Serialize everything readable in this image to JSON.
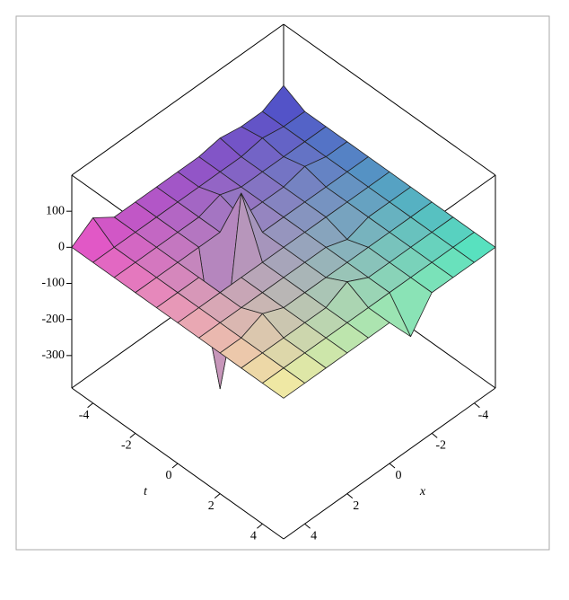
{
  "chart_data": {
    "type": "surface",
    "xlabel": "x",
    "tlabel": "t",
    "t": [
      -5,
      -4,
      -3,
      -2,
      -1,
      0,
      1,
      2,
      3,
      4,
      5
    ],
    "x": [
      -5,
      -4,
      -3,
      -2,
      -1,
      0,
      1,
      2,
      3,
      4,
      5
    ],
    "z": [
      [
        30,
        0,
        0,
        10,
        0,
        0,
        0,
        0,
        0,
        40,
        0
      ],
      [
        0,
        0,
        10,
        0,
        0,
        0,
        0,
        0,
        0,
        0,
        0
      ],
      [
        0,
        0,
        0,
        0,
        0,
        20,
        0,
        0,
        0,
        0,
        0
      ],
      [
        0,
        0,
        15,
        0,
        0,
        0,
        0,
        0,
        0,
        0,
        0
      ],
      [
        0,
        0,
        0,
        0,
        0,
        0,
        150,
        -350,
        0,
        0,
        0
      ],
      [
        0,
        0,
        0,
        0,
        0,
        0,
        0,
        0,
        0,
        0,
        0
      ],
      [
        0,
        0,
        0,
        -20,
        0,
        0,
        0,
        0,
        0,
        0,
        0
      ],
      [
        0,
        0,
        0,
        0,
        0,
        0,
        0,
        0,
        25,
        0,
        0
      ],
      [
        0,
        0,
        0,
        0,
        0,
        30,
        0,
        0,
        0,
        0,
        0
      ],
      [
        0,
        0,
        0,
        0,
        0,
        0,
        0,
        0,
        0,
        0,
        0
      ],
      [
        0,
        0,
        0,
        0,
        -80,
        0,
        0,
        0,
        0,
        0,
        0
      ]
    ],
    "xlim": [
      -5,
      5
    ],
    "tlim": [
      -5,
      5
    ],
    "zlim": [
      -390,
      200
    ],
    "xticks": [
      -4,
      -2,
      0,
      2,
      4
    ],
    "tticks": [
      -4,
      -2,
      0,
      2,
      4
    ],
    "zticks": [
      -300,
      -200,
      -100,
      0,
      100
    ],
    "colors": [
      "#4b4bc8",
      "#e850c8",
      "#50e8c0",
      "#f8f0a0"
    ]
  }
}
